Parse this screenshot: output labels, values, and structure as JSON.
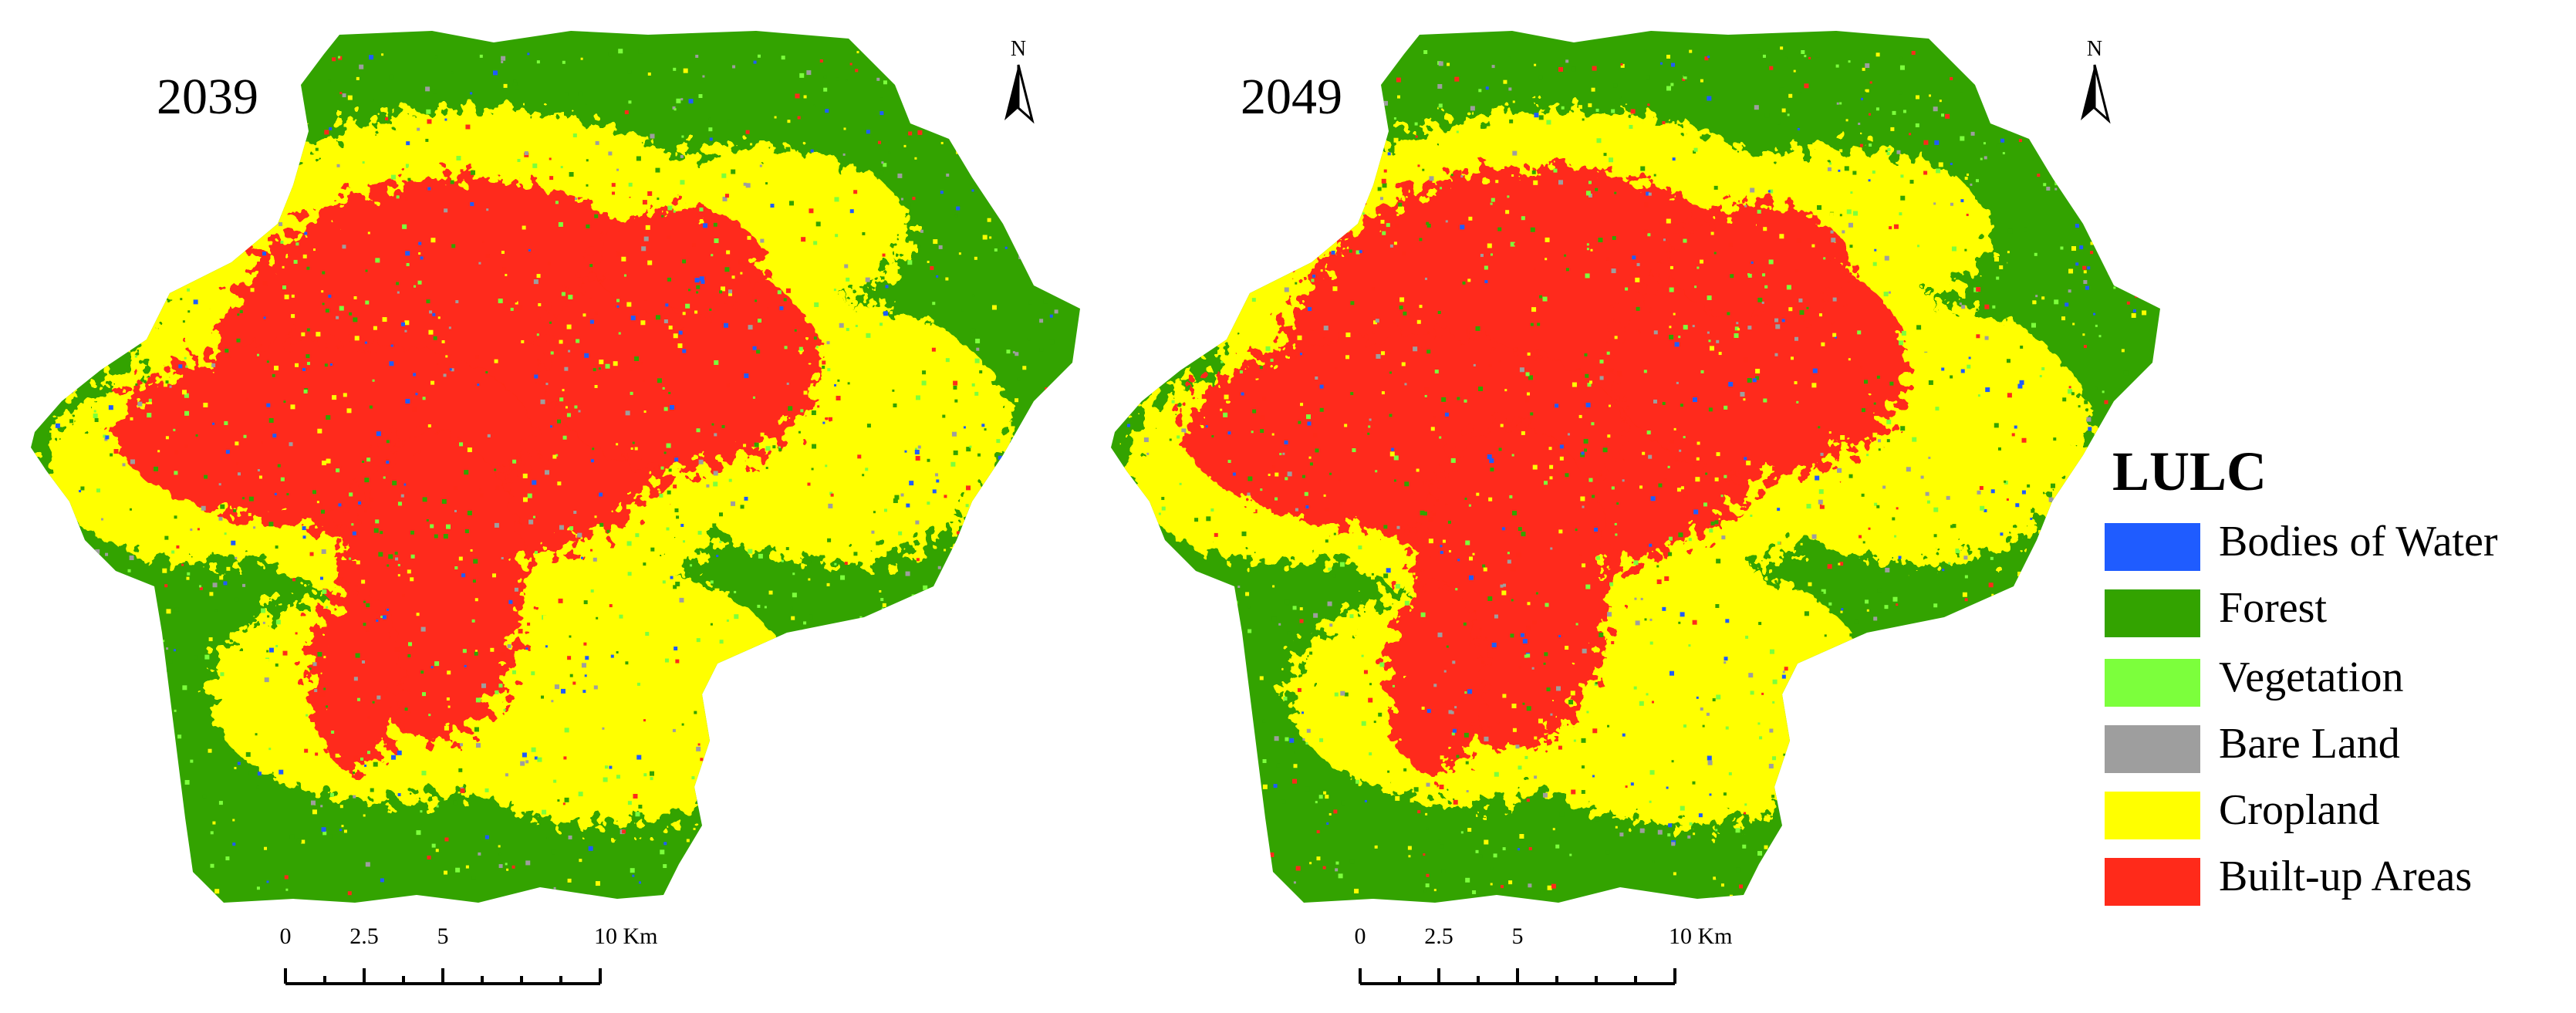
{
  "maps": [
    {
      "year": "2039",
      "north_label": "N",
      "scalebar_labels": [
        "0",
        "2.5",
        "5",
        "10 Km"
      ]
    },
    {
      "year": "2049",
      "north_label": "N",
      "scalebar_labels": [
        "0",
        "2.5",
        "5",
        "10 Km"
      ]
    }
  ],
  "legend": {
    "title": "LULC",
    "items": [
      {
        "label": "Bodies of Water",
        "color": "#1f5cff"
      },
      {
        "label": "Forest",
        "color": "#33a300"
      },
      {
        "label": "Vegetation",
        "color": "#7cff3c"
      },
      {
        "label": "Bare Land",
        "color": "#9e9e9e"
      },
      {
        "label": "Cropland",
        "color": "#ffff00"
      },
      {
        "label": "Built-up Areas",
        "color": "#ff2a1a"
      }
    ]
  }
}
